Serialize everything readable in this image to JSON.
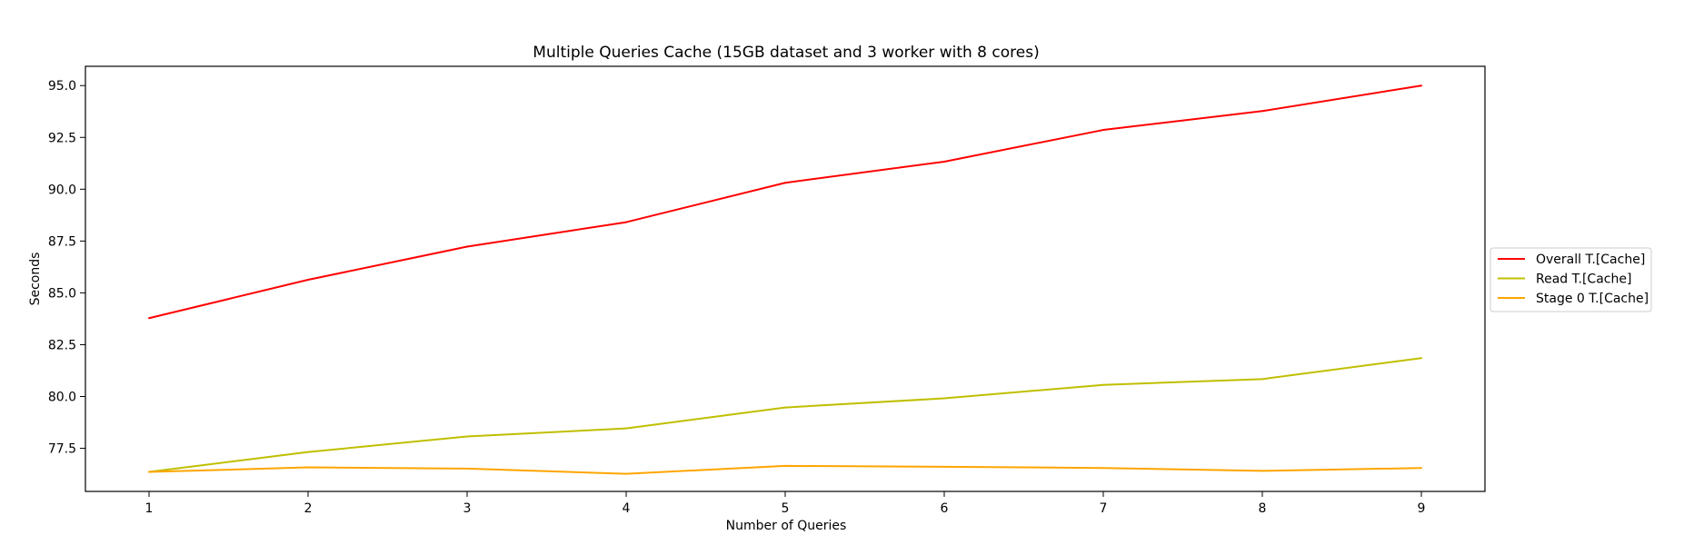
{
  "chart_data": {
    "type": "line",
    "title": "Multiple Queries Cache (15GB dataset and 3 worker with 8 cores)",
    "xlabel": "Number of Queries",
    "ylabel": "Seconds",
    "x": [
      1,
      2,
      3,
      4,
      5,
      6,
      7,
      8,
      9
    ],
    "x_ticks": [
      "1",
      "2",
      "3",
      "4",
      "5",
      "6",
      "7",
      "8",
      "9"
    ],
    "y_ticks": [
      "77.5",
      "80.0",
      "82.5",
      "85.0",
      "87.5",
      "90.0",
      "92.5",
      "95.0"
    ],
    "xlim": [
      0.6,
      9.4
    ],
    "ylim": [
      75.42,
      95.93
    ],
    "grid": false,
    "legend_position": "right",
    "series": [
      {
        "name": "Overall T.[Cache]",
        "color": "#ff0000",
        "values": [
          83.78,
          85.63,
          87.23,
          88.41,
          90.31,
          91.33,
          92.86,
          93.77,
          95.0
        ]
      },
      {
        "name": "Read T.[Cache]",
        "color": "#bfbf00",
        "values": [
          76.36,
          77.32,
          78.07,
          78.46,
          79.47,
          79.91,
          80.56,
          80.84,
          81.85
        ]
      },
      {
        "name": "Stage 0 T.[Cache]",
        "color": "#ffa500",
        "values": [
          76.36,
          76.58,
          76.52,
          76.27,
          76.65,
          76.61,
          76.55,
          76.41,
          76.55
        ]
      }
    ]
  }
}
